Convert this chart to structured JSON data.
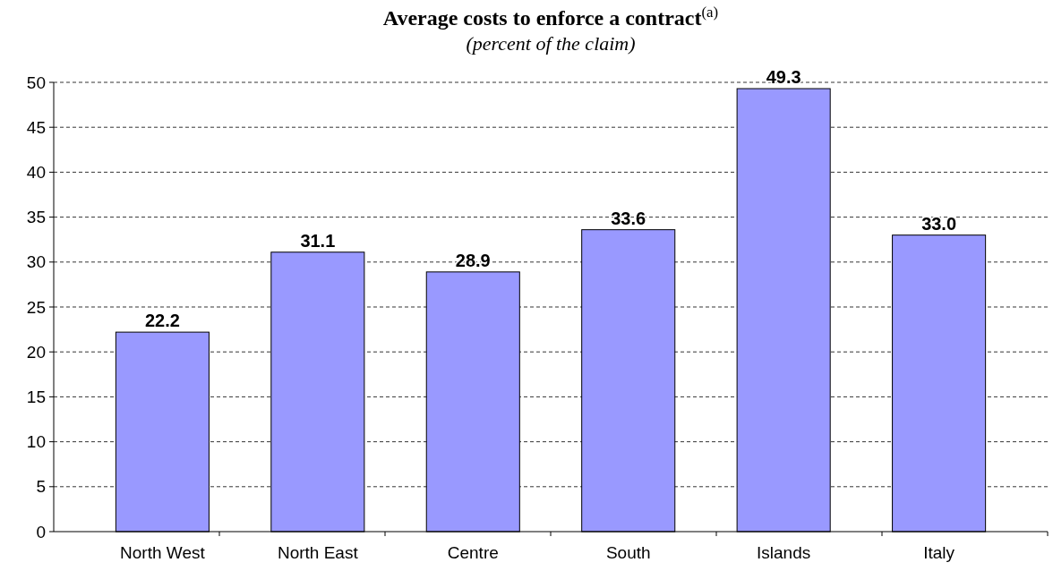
{
  "chart_data": {
    "type": "bar",
    "title": "Average costs to enforce a contract$^{(a)}$",
    "subtitle": "(percent of the claim)",
    "categories": [
      "North West",
      "North East",
      "Centre",
      "South",
      "Islands",
      "Italy"
    ],
    "values": [
      22.2,
      31.1,
      28.9,
      33.6,
      49.3,
      33.0
    ],
    "value_labels": [
      "22.2",
      "31.1",
      "28.9",
      "33.6",
      "49.3",
      "33.0"
    ],
    "color": "#9999ff",
    "ylim": [
      0,
      50
    ],
    "yticks": [
      0,
      5,
      10,
      15,
      20,
      25,
      30,
      35,
      40,
      45,
      50
    ],
    "grid": "y"
  }
}
